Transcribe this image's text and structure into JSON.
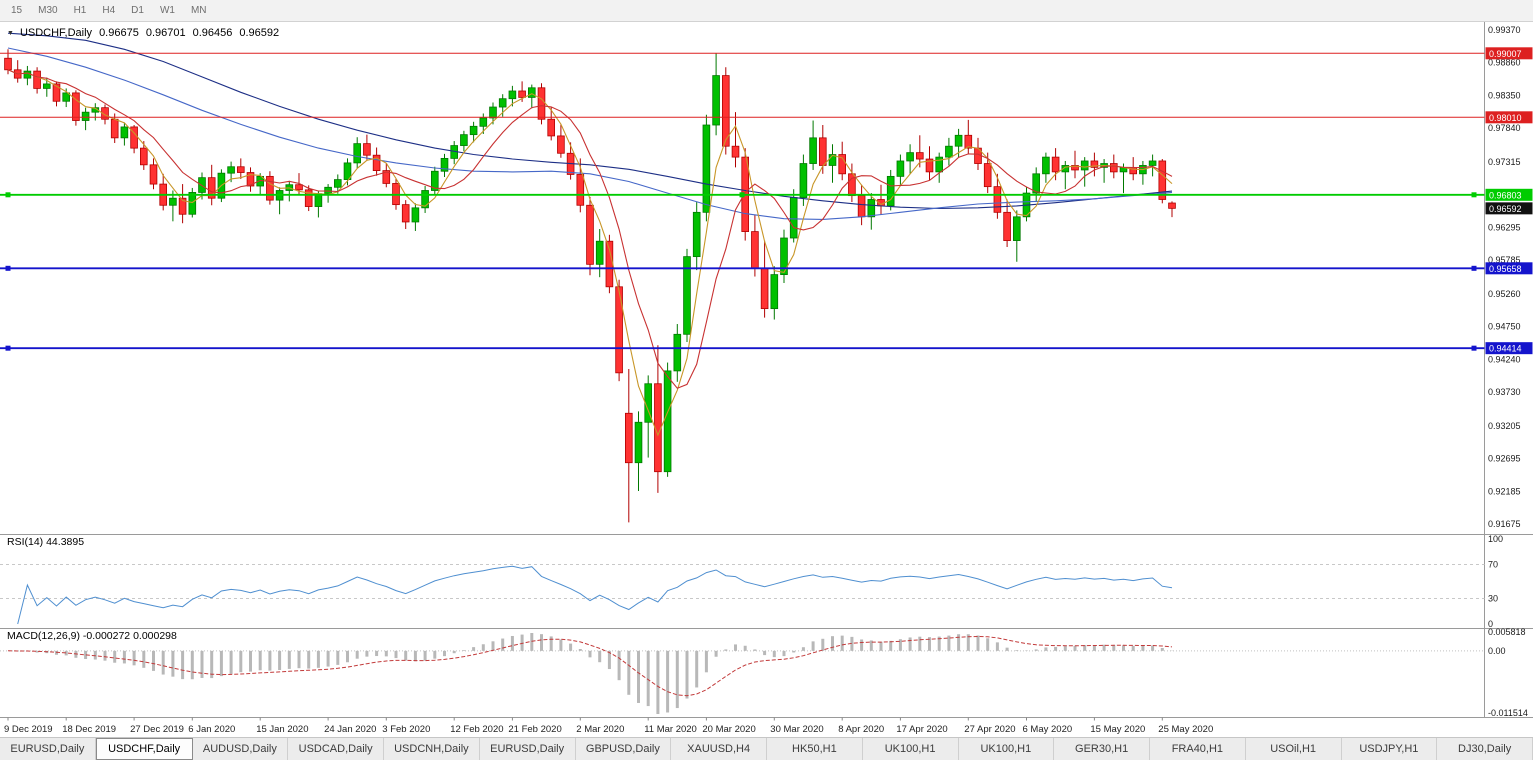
{
  "icons": {
    "collapse": "▼"
  },
  "toolbar": {
    "timeframes": [
      "15",
      "M30",
      "H1",
      "H4",
      "D1",
      "W1",
      "MN"
    ]
  },
  "chart": {
    "symbol": "USDCHF,Daily",
    "open": "0.96675",
    "high": "0.96701",
    "low": "0.96456",
    "close": "0.96592"
  },
  "tabs": {
    "active_index": 1,
    "labels": [
      "EURUSD,Daily",
      "USDCHF,Daily",
      "AUDUSD,Daily",
      "USDCAD,Daily",
      "USDCNH,Daily",
      "EURUSD,Daily",
      "GBPUSD,Daily",
      "XAUUSD,H4",
      "HK50,H1",
      "UK100,H1",
      "UK100,H1",
      "GER30,H1",
      "FRA40,H1",
      "USOil,H1",
      "USDJPY,H1",
      "DJ30,Daily"
    ]
  },
  "chart_data": {
    "type": "candlestick",
    "title": "USDCHF,Daily",
    "style": {
      "up_fill": "#00c000",
      "up_stroke": "#007800",
      "down_fill": "#ff3232",
      "down_stroke": "#b00000"
    },
    "candles": [
      [
        0.9893,
        0.9907,
        0.9868,
        0.9875
      ],
      [
        0.9875,
        0.989,
        0.9855,
        0.9862
      ],
      [
        0.9862,
        0.9881,
        0.9851,
        0.9873
      ],
      [
        0.9873,
        0.9879,
        0.9838,
        0.9846
      ],
      [
        0.9846,
        0.9863,
        0.9833,
        0.9853
      ],
      [
        0.9853,
        0.9857,
        0.9818,
        0.9826
      ],
      [
        0.9826,
        0.9846,
        0.9817,
        0.9839
      ],
      [
        0.9839,
        0.9843,
        0.9788,
        0.9796
      ],
      [
        0.9796,
        0.9816,
        0.9781,
        0.9809
      ],
      [
        0.9809,
        0.9823,
        0.9796,
        0.9816
      ],
      [
        0.9816,
        0.9821,
        0.979,
        0.9798
      ],
      [
        0.9798,
        0.9807,
        0.9761,
        0.9769
      ],
      [
        0.9769,
        0.9793,
        0.9757,
        0.9786
      ],
      [
        0.9786,
        0.9789,
        0.9745,
        0.9753
      ],
      [
        0.9753,
        0.9764,
        0.9719,
        0.9727
      ],
      [
        0.9727,
        0.9737,
        0.9689,
        0.9697
      ],
      [
        0.9697,
        0.9713,
        0.9656,
        0.9664
      ],
      [
        0.9664,
        0.9687,
        0.9639,
        0.9675
      ],
      [
        0.9675,
        0.9697,
        0.9636,
        0.965
      ],
      [
        0.965,
        0.9691,
        0.9645,
        0.9684
      ],
      [
        0.9684,
        0.9715,
        0.9673,
        0.9707
      ],
      [
        0.9707,
        0.9727,
        0.9664,
        0.9675
      ],
      [
        0.9675,
        0.972,
        0.9669,
        0.9714
      ],
      [
        0.9714,
        0.9732,
        0.97,
        0.9724
      ],
      [
        0.9724,
        0.9737,
        0.9705,
        0.9715
      ],
      [
        0.9715,
        0.9723,
        0.9685,
        0.9694
      ],
      [
        0.9694,
        0.9714,
        0.968,
        0.9709
      ],
      [
        0.9709,
        0.9717,
        0.9665,
        0.9672
      ],
      [
        0.9672,
        0.9692,
        0.965,
        0.9687
      ],
      [
        0.9687,
        0.9702,
        0.967,
        0.9696
      ],
      [
        0.9696,
        0.9714,
        0.968,
        0.9688
      ],
      [
        0.9688,
        0.9695,
        0.9655,
        0.9662
      ],
      [
        0.9662,
        0.9687,
        0.9645,
        0.9682
      ],
      [
        0.9682,
        0.9697,
        0.9668,
        0.9692
      ],
      [
        0.9692,
        0.9712,
        0.9682,
        0.9704
      ],
      [
        0.9704,
        0.9737,
        0.9695,
        0.973
      ],
      [
        0.973,
        0.977,
        0.9722,
        0.976
      ],
      [
        0.976,
        0.9774,
        0.9735,
        0.9742
      ],
      [
        0.9742,
        0.9754,
        0.971,
        0.9718
      ],
      [
        0.9718,
        0.9729,
        0.9692,
        0.9698
      ],
      [
        0.9698,
        0.9705,
        0.9657,
        0.9665
      ],
      [
        0.9665,
        0.9672,
        0.9627,
        0.9638
      ],
      [
        0.9638,
        0.9667,
        0.9624,
        0.966
      ],
      [
        0.966,
        0.9694,
        0.9652,
        0.9687
      ],
      [
        0.9687,
        0.9724,
        0.968,
        0.9717
      ],
      [
        0.9717,
        0.9744,
        0.9708,
        0.9737
      ],
      [
        0.9737,
        0.9764,
        0.9728,
        0.9757
      ],
      [
        0.9757,
        0.978,
        0.9748,
        0.9774
      ],
      [
        0.9774,
        0.9794,
        0.9762,
        0.9787
      ],
      [
        0.9787,
        0.9807,
        0.9775,
        0.98
      ],
      [
        0.98,
        0.9824,
        0.979,
        0.9817
      ],
      [
        0.9817,
        0.9837,
        0.9802,
        0.983
      ],
      [
        0.983,
        0.985,
        0.9818,
        0.9842
      ],
      [
        0.9842,
        0.9857,
        0.9825,
        0.9832
      ],
      [
        0.9832,
        0.9852,
        0.9815,
        0.9847
      ],
      [
        0.9847,
        0.9854,
        0.979,
        0.9798
      ],
      [
        0.9798,
        0.9817,
        0.9765,
        0.9772
      ],
      [
        0.9772,
        0.979,
        0.9738,
        0.9745
      ],
      [
        0.9745,
        0.9762,
        0.9704,
        0.9712
      ],
      [
        0.9712,
        0.9737,
        0.9653,
        0.9664
      ],
      [
        0.9664,
        0.9677,
        0.9555,
        0.9572
      ],
      [
        0.9572,
        0.9627,
        0.9552,
        0.9608
      ],
      [
        0.9608,
        0.9618,
        0.9527,
        0.9537
      ],
      [
        0.9537,
        0.9548,
        0.939,
        0.9403
      ],
      [
        0.934,
        0.9409,
        0.917,
        0.9263
      ],
      [
        0.9263,
        0.9343,
        0.9219,
        0.9326
      ],
      [
        0.9326,
        0.9399,
        0.9271,
        0.9386
      ],
      [
        0.9386,
        0.9446,
        0.9216,
        0.9249
      ],
      [
        0.9249,
        0.9419,
        0.9241,
        0.9406
      ],
      [
        0.9406,
        0.9479,
        0.9389,
        0.9463
      ],
      [
        0.9463,
        0.9596,
        0.9451,
        0.9584
      ],
      [
        0.9584,
        0.9669,
        0.9563,
        0.9653
      ],
      [
        0.9653,
        0.9805,
        0.9639,
        0.9789
      ],
      [
        0.9789,
        0.9901,
        0.9773,
        0.9866
      ],
      [
        0.9866,
        0.9879,
        0.9743,
        0.9756
      ],
      [
        0.9756,
        0.9809,
        0.9723,
        0.9739
      ],
      [
        0.9739,
        0.9753,
        0.9609,
        0.9623
      ],
      [
        0.9623,
        0.9649,
        0.9553,
        0.9566
      ],
      [
        0.9566,
        0.9609,
        0.9489,
        0.9503
      ],
      [
        0.9503,
        0.9569,
        0.9486,
        0.9556
      ],
      [
        0.9556,
        0.9626,
        0.9543,
        0.9613
      ],
      [
        0.9613,
        0.9689,
        0.9606,
        0.9676
      ],
      [
        0.9676,
        0.9743,
        0.9663,
        0.9729
      ],
      [
        0.9729,
        0.9796,
        0.9719,
        0.9769
      ],
      [
        0.9769,
        0.9789,
        0.9713,
        0.9726
      ],
      [
        0.9726,
        0.9759,
        0.9699,
        0.9743
      ],
      [
        0.9743,
        0.9763,
        0.9703,
        0.9713
      ],
      [
        0.9713,
        0.9729,
        0.9669,
        0.9679
      ],
      [
        0.9679,
        0.9696,
        0.9633,
        0.9646
      ],
      [
        0.9646,
        0.9683,
        0.9626,
        0.9673
      ],
      [
        0.9673,
        0.9696,
        0.9649,
        0.9663
      ],
      [
        0.9663,
        0.9719,
        0.9656,
        0.9709
      ],
      [
        0.9709,
        0.9743,
        0.9696,
        0.9733
      ],
      [
        0.9733,
        0.9759,
        0.9713,
        0.9746
      ],
      [
        0.9746,
        0.9773,
        0.9723,
        0.9736
      ],
      [
        0.9736,
        0.9756,
        0.9703,
        0.9716
      ],
      [
        0.9716,
        0.9746,
        0.9699,
        0.9739
      ],
      [
        0.9739,
        0.9769,
        0.9726,
        0.9756
      ],
      [
        0.9756,
        0.9783,
        0.9739,
        0.9773
      ],
      [
        0.9773,
        0.9797,
        0.9743,
        0.9753
      ],
      [
        0.9753,
        0.9769,
        0.9719,
        0.9729
      ],
      [
        0.9729,
        0.9746,
        0.9683,
        0.9693
      ],
      [
        0.9693,
        0.9713,
        0.9643,
        0.9653
      ],
      [
        0.9653,
        0.9673,
        0.9599,
        0.9609
      ],
      [
        0.9609,
        0.9656,
        0.9576,
        0.9646
      ],
      [
        0.9646,
        0.9693,
        0.9639,
        0.9683
      ],
      [
        0.9683,
        0.9723,
        0.9669,
        0.9713
      ],
      [
        0.9713,
        0.9746,
        0.9699,
        0.9739
      ],
      [
        0.9739,
        0.9753,
        0.9703,
        0.9716
      ],
      [
        0.9716,
        0.9733,
        0.9689,
        0.9726
      ],
      [
        0.9726,
        0.9749,
        0.9706,
        0.9719
      ],
      [
        0.9719,
        0.9739,
        0.9693,
        0.9733
      ],
      [
        0.9733,
        0.9746,
        0.9709,
        0.9723
      ],
      [
        0.9723,
        0.9736,
        0.9699,
        0.9729
      ],
      [
        0.9729,
        0.9743,
        0.9706,
        0.9716
      ],
      [
        0.9716,
        0.9729,
        0.9683,
        0.9723
      ],
      [
        0.9723,
        0.9739,
        0.9703,
        0.9713
      ],
      [
        0.9713,
        0.9733,
        0.9696,
        0.9726
      ],
      [
        0.9726,
        0.9743,
        0.9709,
        0.9733
      ],
      [
        0.9733,
        0.9736,
        0.9667,
        0.9673
      ],
      [
        0.96675,
        0.96701,
        0.96456,
        0.96592
      ]
    ],
    "ma_lines": [
      {
        "name": "ma-slow-navy",
        "color": "#1d2f86",
        "points": [
          [
            0,
            0.9932
          ],
          [
            4,
            0.9928
          ],
          [
            8,
            0.9921
          ],
          [
            12,
            0.9907
          ],
          [
            16,
            0.9888
          ],
          [
            20,
            0.9864
          ],
          [
            24,
            0.984
          ],
          [
            28,
            0.9818
          ],
          [
            32,
            0.9798
          ],
          [
            36,
            0.9781
          ],
          [
            40,
            0.9766
          ],
          [
            44,
            0.9753
          ],
          [
            48,
            0.9743
          ],
          [
            52,
            0.9736
          ],
          [
            56,
            0.9731
          ],
          [
            60,
            0.9727
          ],
          [
            64,
            0.972
          ],
          [
            68,
            0.9709
          ],
          [
            72,
            0.9697
          ],
          [
            76,
            0.9687
          ],
          [
            80,
            0.9678
          ],
          [
            84,
            0.9671
          ],
          [
            88,
            0.9665
          ],
          [
            92,
            0.9661
          ],
          [
            96,
            0.9659
          ],
          [
            100,
            0.966
          ],
          [
            104,
            0.9663
          ],
          [
            108,
            0.9668
          ],
          [
            112,
            0.9674
          ],
          [
            116,
            0.968
          ],
          [
            120,
            0.9686
          ]
        ]
      },
      {
        "name": "ma-mid-blue",
        "color": "#4668c8",
        "points": [
          [
            0,
            0.9909
          ],
          [
            4,
            0.9896
          ],
          [
            8,
            0.9879
          ],
          [
            12,
            0.9859
          ],
          [
            16,
            0.9836
          ],
          [
            20,
            0.9812
          ],
          [
            24,
            0.979
          ],
          [
            28,
            0.977
          ],
          [
            32,
            0.9753
          ],
          [
            36,
            0.974
          ],
          [
            40,
            0.973
          ],
          [
            44,
            0.9722
          ],
          [
            48,
            0.9717
          ],
          [
            52,
            0.9716
          ],
          [
            56,
            0.9717
          ],
          [
            60,
            0.9713
          ],
          [
            64,
            0.9701
          ],
          [
            68,
            0.9683
          ],
          [
            72,
            0.9665
          ],
          [
            76,
            0.9651
          ],
          [
            80,
            0.9643
          ],
          [
            84,
            0.9642
          ],
          [
            88,
            0.9646
          ],
          [
            92,
            0.9653
          ],
          [
            96,
            0.966
          ],
          [
            100,
            0.9666
          ],
          [
            104,
            0.9669
          ],
          [
            108,
            0.9671
          ],
          [
            112,
            0.9674
          ],
          [
            116,
            0.9679
          ],
          [
            120,
            0.9684
          ]
        ]
      },
      {
        "name": "ma-fast-orange",
        "color": "#c89628",
        "period": 4
      },
      {
        "name": "ma-fast-red",
        "color": "#c83232",
        "period": 8
      }
    ],
    "hlines": [
      {
        "price": 0.99007,
        "label": "0.99007",
        "color": "#dd2020",
        "width": 1,
        "handles": []
      },
      {
        "price": 0.9801,
        "label": "0.98010",
        "color": "#dd2020",
        "width": 1,
        "handles": []
      },
      {
        "price": 0.96803,
        "label": "0.96803",
        "color": "#00cc00",
        "width": 1.8,
        "handles": [
          "left",
          "mid",
          "right"
        ]
      },
      {
        "price": 0.95658,
        "label": "0.95658",
        "color": "#1414cc",
        "width": 1.8,
        "handles": [
          "left",
          "right"
        ]
      },
      {
        "price": 0.94414,
        "label": "0.94414",
        "color": "#1414cc",
        "width": 1.8,
        "handles": [
          "left",
          "right"
        ]
      }
    ],
    "current_price": {
      "value": 0.96592,
      "label": "0.96592",
      "color": "#111111"
    },
    "y_ticks": [
      {
        "label": "0.99370",
        "price": 0.9937
      },
      {
        "label": "0.98860",
        "price": 0.9886
      },
      {
        "label": "0.98350",
        "price": 0.9835
      },
      {
        "label": "0.97840",
        "price": 0.9784
      },
      {
        "label": "0.97315",
        "price": 0.97315
      },
      {
        "label": "0.96295",
        "price": 0.96295
      },
      {
        "label": "0.95785",
        "price": 0.95785
      },
      {
        "label": "0.95260",
        "price": 0.9526
      },
      {
        "label": "0.94750",
        "price": 0.9475
      },
      {
        "label": "0.94240",
        "price": 0.9424
      },
      {
        "label": "0.93730",
        "price": 0.9373
      },
      {
        "label": "0.93205",
        "price": 0.93205
      },
      {
        "label": "0.92695",
        "price": 0.92695
      },
      {
        "label": "0.92185",
        "price": 0.92185
      },
      {
        "label": "0.91675",
        "price": 0.91675
      }
    ],
    "date_labels": [
      {
        "label": "9 Dec 2019",
        "i": 0
      },
      {
        "label": "18 Dec 2019",
        "i": 6
      },
      {
        "label": "27 Dec 2019",
        "i": 13
      },
      {
        "label": "6 Jan 2020",
        "i": 19
      },
      {
        "label": "15 Jan 2020",
        "i": 26
      },
      {
        "label": "24 Jan 2020",
        "i": 33
      },
      {
        "label": "3 Feb 2020",
        "i": 39
      },
      {
        "label": "12 Feb 2020",
        "i": 46
      },
      {
        "label": "21 Feb 2020",
        "i": 52
      },
      {
        "label": "2 Mar 2020",
        "i": 59
      },
      {
        "label": "11 Mar 2020",
        "i": 66
      },
      {
        "label": "20 Mar 2020",
        "i": 72
      },
      {
        "label": "30 Mar 2020",
        "i": 79
      },
      {
        "label": "8 Apr 2020",
        "i": 86
      },
      {
        "label": "17 Apr 2020",
        "i": 92
      },
      {
        "label": "27 Apr 2020",
        "i": 99
      },
      {
        "label": "6 May 2020",
        "i": 105
      },
      {
        "label": "15 May 2020",
        "i": 112
      },
      {
        "label": "25 May 2020",
        "i": 119
      }
    ],
    "rsi": {
      "label": "RSI(14) 44.3895",
      "period": 14,
      "value": 44.3895,
      "color": "#4f8fd0",
      "levels": [
        {
          "label": "100",
          "v": 100
        },
        {
          "label": "70",
          "v": 70
        },
        {
          "label": "30",
          "v": 30
        },
        {
          "label": "0",
          "v": 0
        }
      ]
    },
    "macd": {
      "label": "MACD(12,26,9) -0.000272 0.000298",
      "fast": 12,
      "slow": 26,
      "signal": 9,
      "macd_value": -0.000272,
      "signal_value": 0.000298,
      "bar_color": "#b8b8b8",
      "signal_color": "#c23a3a",
      "max_label": "0.005818",
      "zero_label": "0.00",
      "min_label": "-0.011514"
    }
  }
}
